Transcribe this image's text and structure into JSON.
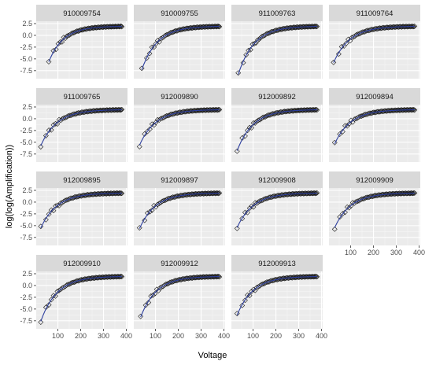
{
  "chart_data": {
    "type": "scatter",
    "layout": "facet_wrap",
    "xlabel": "Voltage",
    "ylabel": "log(log(Amplification))",
    "xlim": [
      5,
      405
    ],
    "ylim": [
      -9.2,
      3.0
    ],
    "x_ticks": [
      100,
      200,
      300,
      400
    ],
    "y_ticks": [
      2.5,
      0.0,
      -2.5,
      -5.0,
      -7.5
    ],
    "y_tick_labels": [
      "2.5",
      "0.0",
      "-2.5",
      "-5.0",
      "-7.5"
    ],
    "grid": true,
    "marker": "open-diamond",
    "fit_line": true,
    "panels": [
      {
        "id": "910009754",
        "x_start": 60,
        "y_start": -5.6
      },
      {
        "id": "910009755",
        "x_start": 40,
        "y_start": -7.3
      },
      {
        "id": "911009763",
        "x_start": 35,
        "y_start": -8.3
      },
      {
        "id": "911009764",
        "x_start": 25,
        "y_start": -5.8
      },
      {
        "id": "911009765",
        "x_start": 25,
        "y_start": -5.7
      },
      {
        "id": "912009890",
        "x_start": 30,
        "y_start": -5.6
      },
      {
        "id": "912009892",
        "x_start": 30,
        "y_start": -6.8
      },
      {
        "id": "912009894",
        "x_start": 30,
        "y_start": -5.3
      },
      {
        "id": "912009895",
        "x_start": 25,
        "y_start": -5.5
      },
      {
        "id": "912009897",
        "x_start": 30,
        "y_start": -5.6
      },
      {
        "id": "912009908",
        "x_start": 30,
        "y_start": -5.4
      },
      {
        "id": "912009909",
        "x_start": 30,
        "y_start": -5.4
      },
      {
        "id": "912009910",
        "x_start": 25,
        "y_start": -7.6
      },
      {
        "id": "912009912",
        "x_start": 35,
        "y_start": -6.7
      },
      {
        "id": "912009913",
        "x_start": 30,
        "y_start": -6.3
      }
    ],
    "x_end": 380,
    "y_end": 1.9
  },
  "colors": {
    "panel_background": "#ebebeb",
    "strip_background": "#d9d9d9",
    "grid_major": "#ffffff",
    "grid_minor": "#f5f5f5",
    "points": "#1a1a1a",
    "fit_line": "#2c3e9e"
  }
}
